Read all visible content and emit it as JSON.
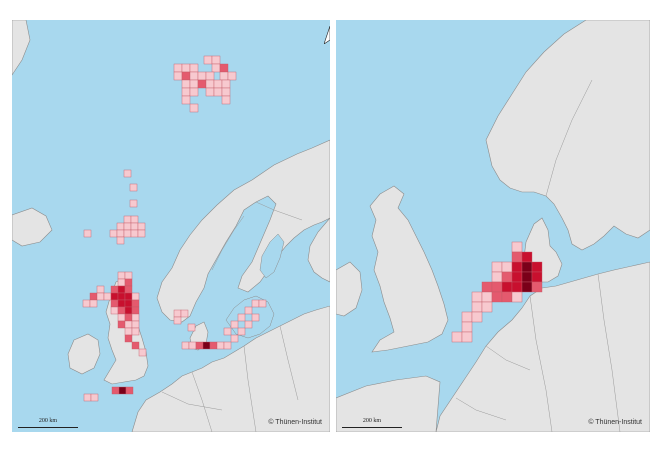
{
  "maps": [
    {
      "id": "left",
      "scale_label": "200 km",
      "copyright": "© Thünen-Institut",
      "has_north_arrow": true
    },
    {
      "id": "right",
      "scale_label": "200 km",
      "copyright": "© Thünen-Institut",
      "has_north_arrow": false
    }
  ],
  "colors": {
    "sea": "#a8d8ee",
    "land": "#e4e4e4",
    "border": "#8c8c8c",
    "cell_low": "#f7c9cf",
    "cell_mid": "#e45a6e",
    "cell_high": "#c8102e",
    "cell_max": "#7a0019"
  }
}
